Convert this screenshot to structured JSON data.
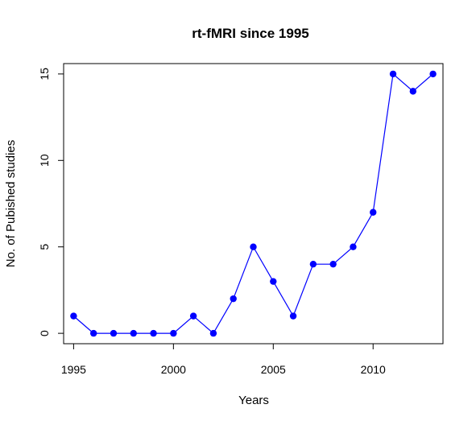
{
  "chart_data": {
    "type": "line",
    "title": "rt-fMRI since 1995",
    "xlabel": "Years",
    "ylabel": "No. of Pubished studies",
    "x": [
      1995,
      1996,
      1997,
      1998,
      1999,
      2000,
      2001,
      2002,
      2003,
      2004,
      2005,
      2006,
      2007,
      2008,
      2009,
      2010,
      2011,
      2012,
      2013
    ],
    "series": [
      {
        "values": [
          1,
          0,
          0,
          0,
          0,
          0,
          1,
          0,
          2,
          5,
          3,
          1,
          4,
          4,
          5,
          7,
          15,
          14,
          15
        ],
        "color": "#0000ff"
      }
    ],
    "xticks": [
      1995,
      2000,
      2005,
      2010
    ],
    "yticks": [
      0,
      5,
      10,
      15
    ],
    "xlim": [
      1994.5,
      2013.5
    ],
    "ylim": [
      -0.6,
      15.6
    ],
    "grid": false,
    "legend": "none"
  }
}
